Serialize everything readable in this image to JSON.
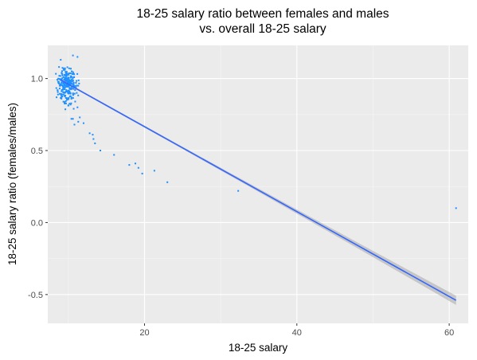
{
  "chart_data": {
    "type": "scatter",
    "title": "18-25 salary ratio between females and males",
    "subtitle": "vs. overall 18-25 salary",
    "xlabel": "18-25 salary",
    "ylabel": "18-25 salary ratio (females/males)",
    "xlim": [
      7.3,
      62.5
    ],
    "ylim": [
      -0.7,
      1.23
    ],
    "x_ticks": [
      20,
      40,
      60
    ],
    "x_tick_labels": [
      "20",
      "40",
      "60"
    ],
    "y_ticks": [
      -0.5,
      0.0,
      0.5,
      1.0
    ],
    "y_tick_labels": [
      "-0.5",
      "0.0",
      "0.5",
      "1.0"
    ],
    "grid": true,
    "legend": "none",
    "point_color": "#1e90ff",
    "fit_line_color": "#3366ff",
    "band_color": "#999999",
    "background": "#ebebeb",
    "cluster": {
      "count": 260,
      "x_center": 9.8,
      "x_spread": 0.55,
      "y_center": 0.95,
      "y_spread": 0.055
    },
    "points": [
      {
        "x": 10.6,
        "y": 1.16
      },
      {
        "x": 11.2,
        "y": 1.15
      },
      {
        "x": 9.0,
        "y": 1.13
      },
      {
        "x": 11.0,
        "y": 0.97
      },
      {
        "x": 11.3,
        "y": 0.95
      },
      {
        "x": 11.1,
        "y": 0.9
      },
      {
        "x": 10.9,
        "y": 0.84
      },
      {
        "x": 11.2,
        "y": 0.8
      },
      {
        "x": 10.7,
        "y": 0.79
      },
      {
        "x": 11.5,
        "y": 0.73
      },
      {
        "x": 10.6,
        "y": 0.72
      },
      {
        "x": 11.3,
        "y": 0.7
      },
      {
        "x": 10.4,
        "y": 0.72
      },
      {
        "x": 10.8,
        "y": 0.68
      },
      {
        "x": 12.0,
        "y": 0.69
      },
      {
        "x": 12.8,
        "y": 0.62
      },
      {
        "x": 13.3,
        "y": 0.58
      },
      {
        "x": 13.5,
        "y": 0.55
      },
      {
        "x": 13.2,
        "y": 0.61
      },
      {
        "x": 14.2,
        "y": 0.5
      },
      {
        "x": 16.0,
        "y": 0.47
      },
      {
        "x": 18.0,
        "y": 0.4
      },
      {
        "x": 18.8,
        "y": 0.41
      },
      {
        "x": 19.2,
        "y": 0.38
      },
      {
        "x": 19.7,
        "y": 0.34
      },
      {
        "x": 21.3,
        "y": 0.36
      },
      {
        "x": 23.0,
        "y": 0.28
      },
      {
        "x": 32.3,
        "y": 0.22
      },
      {
        "x": 60.9,
        "y": 0.1
      }
    ],
    "fit_line": {
      "x_start": 9.0,
      "y_start": 0.99,
      "x_end": 60.9,
      "y_end": -0.54,
      "se_start": 0.012,
      "se_min": 0.006,
      "se_end": 0.032
    }
  }
}
